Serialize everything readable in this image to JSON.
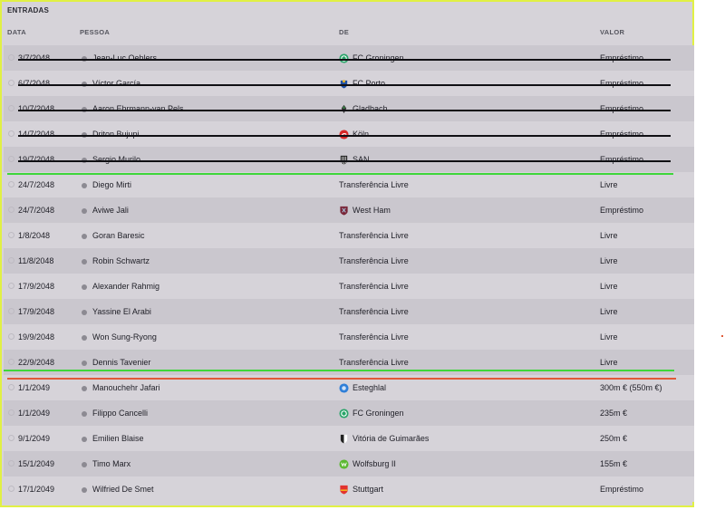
{
  "section_title": "ENTRADAS",
  "headers": {
    "date": "DATA",
    "person": "PESSOA",
    "from": "DE",
    "value": "VALOR"
  },
  "rows": [
    {
      "date": "3/7/2048",
      "person": "Jean-Luc Oehlers",
      "from": "FC Groningen",
      "value": "Empréstimo",
      "logo": "groningen-logo",
      "struck": true
    },
    {
      "date": "6/7/2048",
      "person": "Víctor García",
      "from": "FC Porto",
      "value": "Empréstimo",
      "logo": "porto-logo",
      "struck": true
    },
    {
      "date": "10/7/2048",
      "person": "Aaron Ehrmann-van Pels",
      "from": "Gladbach",
      "value": "Empréstimo",
      "logo": "gladbach-logo",
      "struck": true
    },
    {
      "date": "14/7/2048",
      "person": "Driton Bujupi",
      "from": "Köln",
      "value": "Empréstimo",
      "logo": "koln-logo",
      "struck": true
    },
    {
      "date": "19/7/2048",
      "person": "Sergio Murilo",
      "from": "SAN",
      "value": "Empréstimo",
      "logo": "santos-logo",
      "struck": true
    },
    {
      "date": "24/7/2048",
      "person": "Diego Mirti",
      "from": "Transferência Livre",
      "value": "Livre",
      "logo": "",
      "struck": false
    },
    {
      "date": "24/7/2048",
      "person": "Aviwe Jali",
      "from": "West Ham",
      "value": "Empréstimo",
      "logo": "westham-logo",
      "struck": false
    },
    {
      "date": "1/8/2048",
      "person": "Goran Baresic",
      "from": "Transferência Livre",
      "value": "Livre",
      "logo": "",
      "struck": false
    },
    {
      "date": "11/8/2048",
      "person": "Robin Schwartz",
      "from": "Transferência Livre",
      "value": "Livre",
      "logo": "",
      "struck": false
    },
    {
      "date": "17/9/2048",
      "person": "Alexander Rahmig",
      "from": "Transferência Livre",
      "value": "Livre",
      "logo": "",
      "struck": false
    },
    {
      "date": "17/9/2048",
      "person": "Yassine El Arabi",
      "from": "Transferência Livre",
      "value": "Livre",
      "logo": "",
      "struck": false
    },
    {
      "date": "19/9/2048",
      "person": "Won Sung-Ryong",
      "from": "Transferência Livre",
      "value": "Livre",
      "logo": "",
      "struck": false
    },
    {
      "date": "22/9/2048",
      "person": "Dennis Tavenier",
      "from": "Transferência Livre",
      "value": "Livre",
      "logo": "",
      "struck": false
    },
    {
      "date": "1/1/2049",
      "person": "Manouchehr Jafari",
      "from": "Esteghlal",
      "value": "300m € (550m €)",
      "logo": "esteghlal-logo",
      "struck": false
    },
    {
      "date": "1/1/2049",
      "person": "Filippo Cancelli",
      "from": "FC Groningen",
      "value": "235m €",
      "logo": "groningen-logo",
      "struck": false
    },
    {
      "date": "9/1/2049",
      "person": "Emilien Blaise",
      "from": "Vitória de Guimarães",
      "value": "250m €",
      "logo": "guimaraes-logo",
      "struck": false
    },
    {
      "date": "15/1/2049",
      "person": "Timo Marx",
      "from": "Wolfsburg II",
      "value": "155m €",
      "logo": "wolfsburg-logo",
      "struck": false
    },
    {
      "date": "17/1/2049",
      "person": "Wilfried De Smet",
      "from": "Stuttgart",
      "value": "Empréstimo",
      "logo": "stuttgart-logo",
      "struck": false
    }
  ],
  "colors": {
    "panel_border": "#e1f044",
    "annotation_green": "#3ed63a",
    "annotation_red": "#e05a38"
  }
}
